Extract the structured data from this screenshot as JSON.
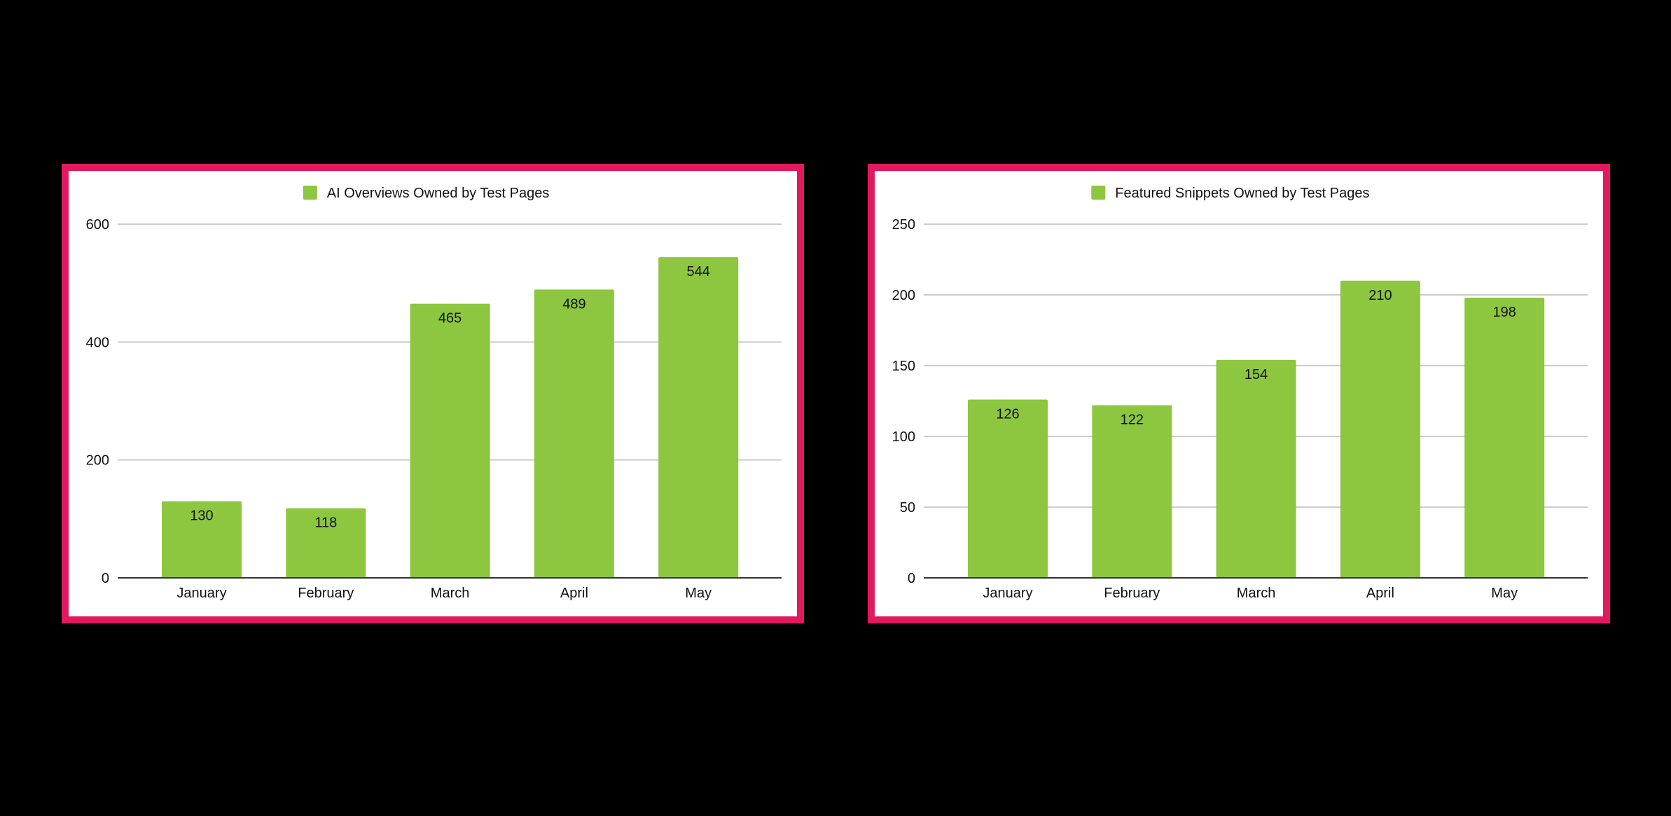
{
  "colors": {
    "border": "#e2195f",
    "bar": "#8dc63f",
    "grid": "#cccccc",
    "axis": "#333333"
  },
  "chart_data": [
    {
      "type": "bar",
      "legend": "AI Overviews Owned by Test Pages",
      "legend_position": "top",
      "categories": [
        "January",
        "February",
        "March",
        "April",
        "May"
      ],
      "series": [
        {
          "name": "AI Overviews Owned by Test Pages",
          "values": [
            130,
            118,
            465,
            489,
            544
          ]
        }
      ],
      "yticks": [
        0,
        200,
        400,
        600
      ],
      "ylim": [
        0,
        600
      ],
      "grid": true,
      "data_labels": true
    },
    {
      "type": "bar",
      "legend": "Featured Snippets Owned by Test Pages",
      "legend_position": "top",
      "categories": [
        "January",
        "February",
        "March",
        "April",
        "May"
      ],
      "series": [
        {
          "name": "Featured Snippets Owned by Test Pages",
          "values": [
            126,
            122,
            154,
            210,
            198
          ]
        }
      ],
      "yticks": [
        0,
        50,
        100,
        150,
        200,
        250
      ],
      "ylim": [
        0,
        250
      ],
      "grid": true,
      "data_labels": true
    }
  ]
}
